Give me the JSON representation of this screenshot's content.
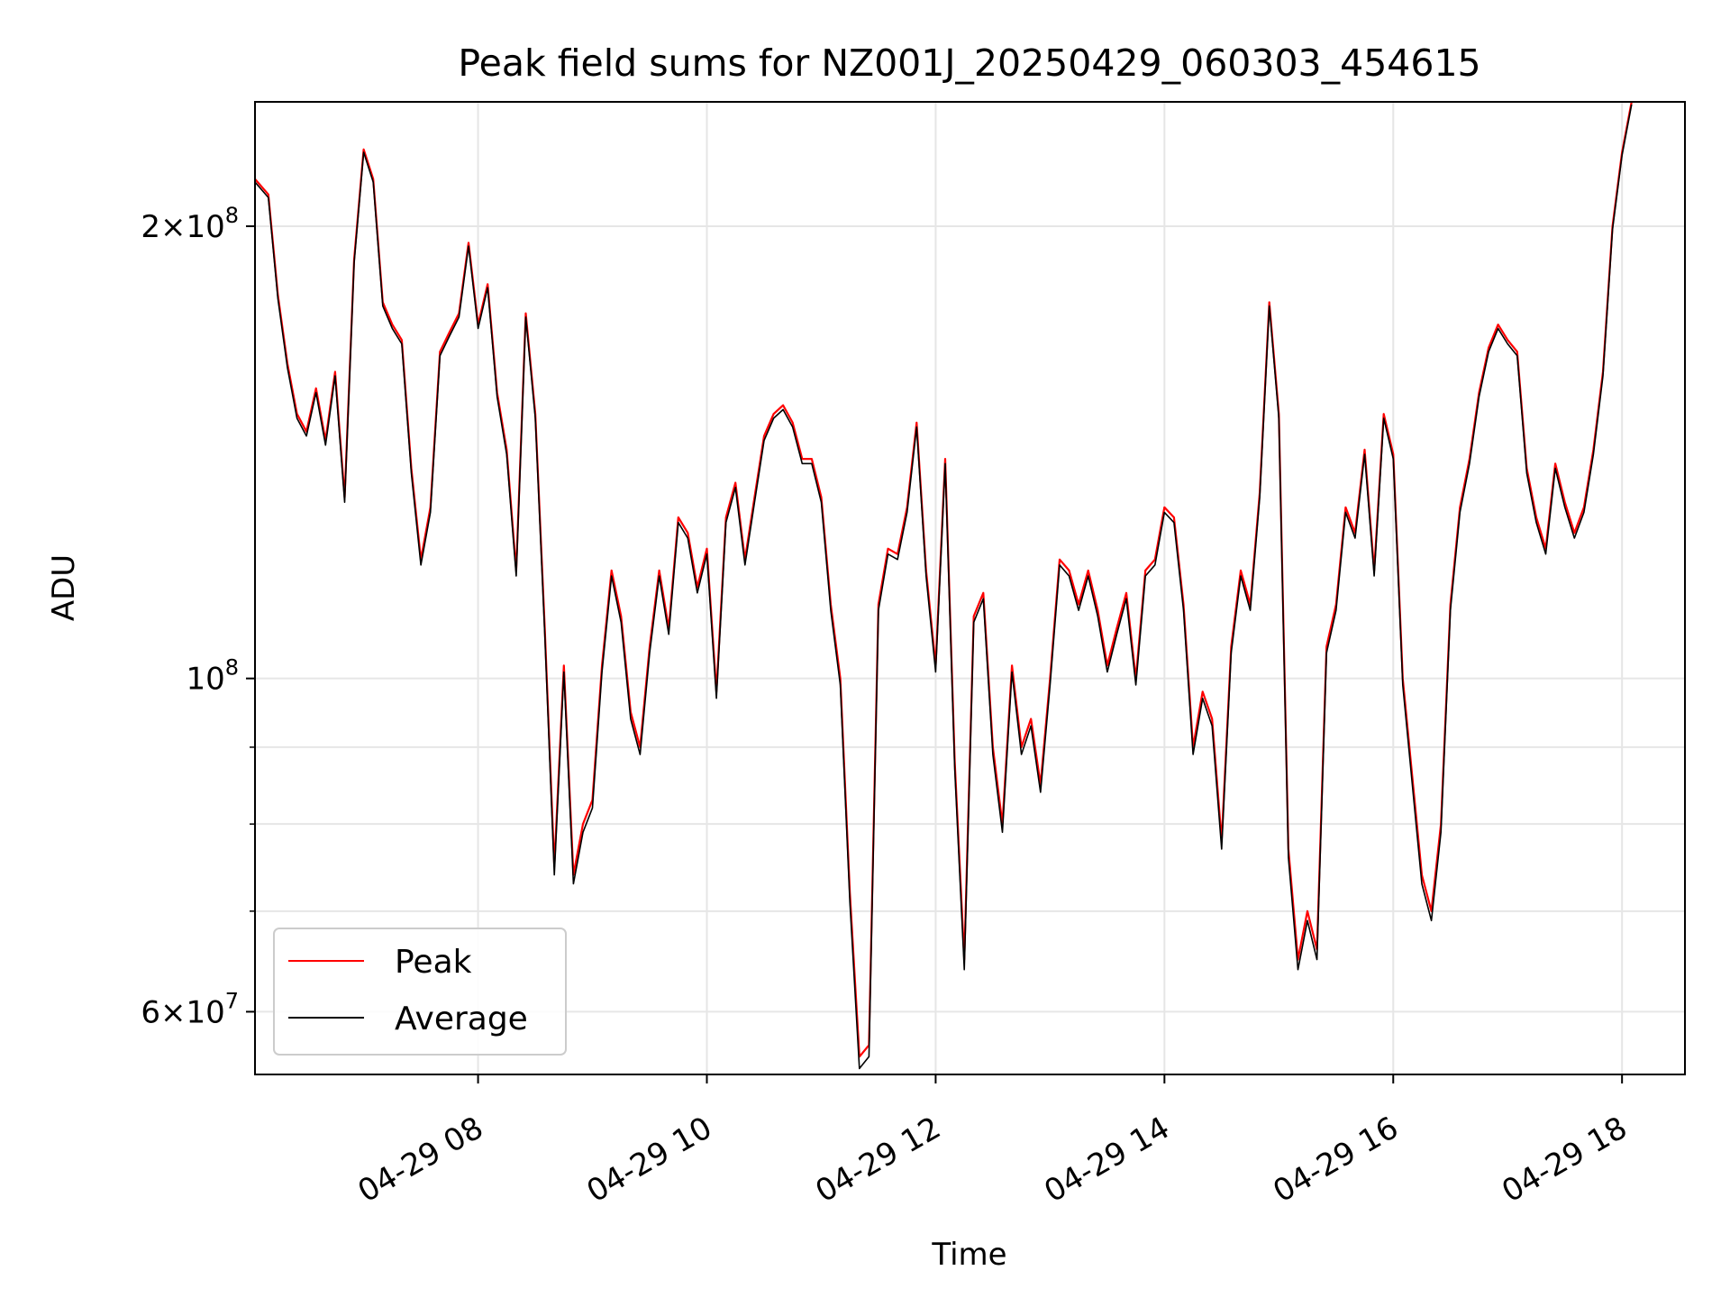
{
  "chart_data": {
    "type": "line",
    "title": "Peak field sums for NZ001J_20250429_060303_454615",
    "xlabel": "Time",
    "ylabel": "ADU",
    "y_scale": "log",
    "grid": true,
    "legend_position": "lower-left",
    "x_range": [
      "2025-04-29 06:03",
      "2025-04-29 18:33"
    ],
    "ylim": [
      54500000,
      242000000
    ],
    "x_ticks": [
      {
        "t": "2025-04-29 08:00",
        "label": "04-29 08"
      },
      {
        "t": "2025-04-29 10:00",
        "label": "04-29 10"
      },
      {
        "t": "2025-04-29 12:00",
        "label": "04-29 12"
      },
      {
        "t": "2025-04-29 14:00",
        "label": "04-29 14"
      },
      {
        "t": "2025-04-29 16:00",
        "label": "04-29 16"
      },
      {
        "t": "2025-04-29 18:00",
        "label": "04-29 18"
      }
    ],
    "y_major_ticks": [
      {
        "value": 60000000,
        "base": "6",
        "exp": "7"
      },
      {
        "value": 100000000,
        "base": "",
        "exp": "8"
      },
      {
        "value": 200000000,
        "base": "2",
        "exp": "8"
      }
    ],
    "y_minor_ticks": [
      70000000,
      80000000,
      90000000
    ],
    "series_times": [
      "2025-04-29 06:03",
      "2025-04-29 06:10",
      "2025-04-29 06:15",
      "2025-04-29 06:20",
      "2025-04-29 06:25",
      "2025-04-29 06:30",
      "2025-04-29 06:35",
      "2025-04-29 06:40",
      "2025-04-29 06:45",
      "2025-04-29 06:50",
      "2025-04-29 06:55",
      "2025-04-29 07:00",
      "2025-04-29 07:05",
      "2025-04-29 07:10",
      "2025-04-29 07:15",
      "2025-04-29 07:20",
      "2025-04-29 07:25",
      "2025-04-29 07:30",
      "2025-04-29 07:35",
      "2025-04-29 07:40",
      "2025-04-29 07:45",
      "2025-04-29 07:50",
      "2025-04-29 07:55",
      "2025-04-29 08:00",
      "2025-04-29 08:05",
      "2025-04-29 08:10",
      "2025-04-29 08:15",
      "2025-04-29 08:20",
      "2025-04-29 08:25",
      "2025-04-29 08:30",
      "2025-04-29 08:35",
      "2025-04-29 08:40",
      "2025-04-29 08:45",
      "2025-04-29 08:50",
      "2025-04-29 08:55",
      "2025-04-29 09:00",
      "2025-04-29 09:05",
      "2025-04-29 09:10",
      "2025-04-29 09:15",
      "2025-04-29 09:20",
      "2025-04-29 09:25",
      "2025-04-29 09:30",
      "2025-04-29 09:35",
      "2025-04-29 09:40",
      "2025-04-29 09:45",
      "2025-04-29 09:50",
      "2025-04-29 09:55",
      "2025-04-29 10:00",
      "2025-04-29 10:05",
      "2025-04-29 10:10",
      "2025-04-29 10:15",
      "2025-04-29 10:20",
      "2025-04-29 10:25",
      "2025-04-29 10:30",
      "2025-04-29 10:35",
      "2025-04-29 10:40",
      "2025-04-29 10:45",
      "2025-04-29 10:50",
      "2025-04-29 10:55",
      "2025-04-29 11:00",
      "2025-04-29 11:05",
      "2025-04-29 11:10",
      "2025-04-29 11:15",
      "2025-04-29 11:20",
      "2025-04-29 11:25",
      "2025-04-29 11:30",
      "2025-04-29 11:35",
      "2025-04-29 11:40",
      "2025-04-29 11:45",
      "2025-04-29 11:50",
      "2025-04-29 11:55",
      "2025-04-29 12:00",
      "2025-04-29 12:05",
      "2025-04-29 12:10",
      "2025-04-29 12:15",
      "2025-04-29 12:20",
      "2025-04-29 12:25",
      "2025-04-29 12:30",
      "2025-04-29 12:35",
      "2025-04-29 12:40",
      "2025-04-29 12:45",
      "2025-04-29 12:50",
      "2025-04-29 12:55",
      "2025-04-29 13:00",
      "2025-04-29 13:05",
      "2025-04-29 13:10",
      "2025-04-29 13:15",
      "2025-04-29 13:20",
      "2025-04-29 13:25",
      "2025-04-29 13:30",
      "2025-04-29 13:35",
      "2025-04-29 13:40",
      "2025-04-29 13:45",
      "2025-04-29 13:50",
      "2025-04-29 13:55",
      "2025-04-29 14:00",
      "2025-04-29 14:05",
      "2025-04-29 14:10",
      "2025-04-29 14:15",
      "2025-04-29 14:20",
      "2025-04-29 14:25",
      "2025-04-29 14:30",
      "2025-04-29 14:35",
      "2025-04-29 14:40",
      "2025-04-29 14:45",
      "2025-04-29 14:50",
      "2025-04-29 14:55",
      "2025-04-29 15:00",
      "2025-04-29 15:05",
      "2025-04-29 15:10",
      "2025-04-29 15:15",
      "2025-04-29 15:20",
      "2025-04-29 15:25",
      "2025-04-29 15:30",
      "2025-04-29 15:35",
      "2025-04-29 15:40",
      "2025-04-29 15:45",
      "2025-04-29 15:50",
      "2025-04-29 15:55",
      "2025-04-29 16:00",
      "2025-04-29 16:05",
      "2025-04-29 16:10",
      "2025-04-29 16:15",
      "2025-04-29 16:20",
      "2025-04-29 16:25",
      "2025-04-29 16:30",
      "2025-04-29 16:35",
      "2025-04-29 16:40",
      "2025-04-29 16:45",
      "2025-04-29 16:50",
      "2025-04-29 16:55",
      "2025-04-29 17:00",
      "2025-04-29 17:05",
      "2025-04-29 17:10",
      "2025-04-29 17:15",
      "2025-04-29 17:20",
      "2025-04-29 17:25",
      "2025-04-29 17:30",
      "2025-04-29 17:35",
      "2025-04-29 17:40",
      "2025-04-29 17:45",
      "2025-04-29 17:50",
      "2025-04-29 17:55",
      "2025-04-29 18:00",
      "2025-04-29 18:05",
      "2025-04-29 18:10",
      "2025-04-29 18:15",
      "2025-04-29 18:20",
      "2025-04-29 18:25",
      "2025-04-29 18:33"
    ],
    "series": [
      {
        "name": "Peak",
        "color": "#ff0000",
        "values": [
          215,
          210,
          180,
          162,
          150,
          146,
          156,
          144,
          160,
          132,
          190,
          225,
          215,
          178,
          172,
          168,
          138,
          120,
          130,
          165,
          170,
          175,
          195,
          172,
          183,
          155,
          142,
          118,
          175,
          150,
          108,
          75,
          102,
          74,
          80,
          83,
          102,
          118,
          110,
          95,
          90,
          105,
          118,
          108,
          128,
          125,
          115,
          122,
          98,
          128,
          135,
          120,
          132,
          145,
          150,
          152,
          148,
          140,
          140,
          132,
          112,
          100,
          72,
          56,
          57,
          112,
          122,
          121,
          130,
          148,
          118,
          102,
          140,
          88,
          65,
          110,
          114,
          90,
          80,
          102,
          90,
          94,
          85,
          100,
          120,
          118,
          112,
          118,
          111,
          102,
          108,
          114,
          100,
          118,
          120,
          130,
          128,
          112,
          90,
          98,
          94,
          78,
          105,
          118,
          112,
          133,
          178,
          150,
          77,
          65,
          70,
          66,
          105,
          112,
          130,
          125,
          142,
          118,
          150,
          141,
          100,
          86,
          74,
          70,
          80,
          112,
          130,
          140,
          155,
          166,
          172,
          168,
          165,
          138,
          128,
          122,
          139,
          131,
          125,
          130,
          142,
          160,
          200,
          224,
          242
        ]
      },
      {
        "name": "Average",
        "color": "#000000",
        "values": [
          214,
          209,
          179,
          161,
          149,
          145,
          155,
          143,
          159,
          131,
          189,
          224,
          214,
          177,
          171,
          167,
          137,
          119,
          129,
          164,
          169,
          174,
          194,
          171,
          182,
          154,
          141,
          117,
          174,
          149,
          107,
          74,
          101,
          73,
          79,
          82,
          101,
          117,
          109,
          94,
          89,
          104,
          117,
          107,
          127,
          124,
          114,
          121,
          97,
          127,
          134,
          119,
          131,
          144,
          149,
          151,
          147,
          139,
          139,
          131,
          111,
          99,
          71,
          55,
          56,
          111,
          121,
          120,
          129,
          147,
          117,
          101,
          139,
          87,
          64,
          109,
          113,
          89,
          79,
          101,
          89,
          93,
          84,
          99,
          119,
          117,
          111,
          117,
          110,
          101,
          107,
          113,
          99,
          117,
          119,
          129,
          127,
          111,
          89,
          97,
          93,
          77,
          104,
          117,
          111,
          132,
          177,
          149,
          76,
          64,
          69,
          65,
          104,
          111,
          129,
          124,
          141,
          117,
          149,
          140,
          99,
          85,
          73,
          69,
          79,
          111,
          129,
          139,
          154,
          165,
          171,
          167,
          164,
          137,
          127,
          121,
          138,
          130,
          124,
          129,
          141,
          159,
          199,
          223,
          241
        ]
      }
    ],
    "value_unit_multiplier": 1000000
  }
}
